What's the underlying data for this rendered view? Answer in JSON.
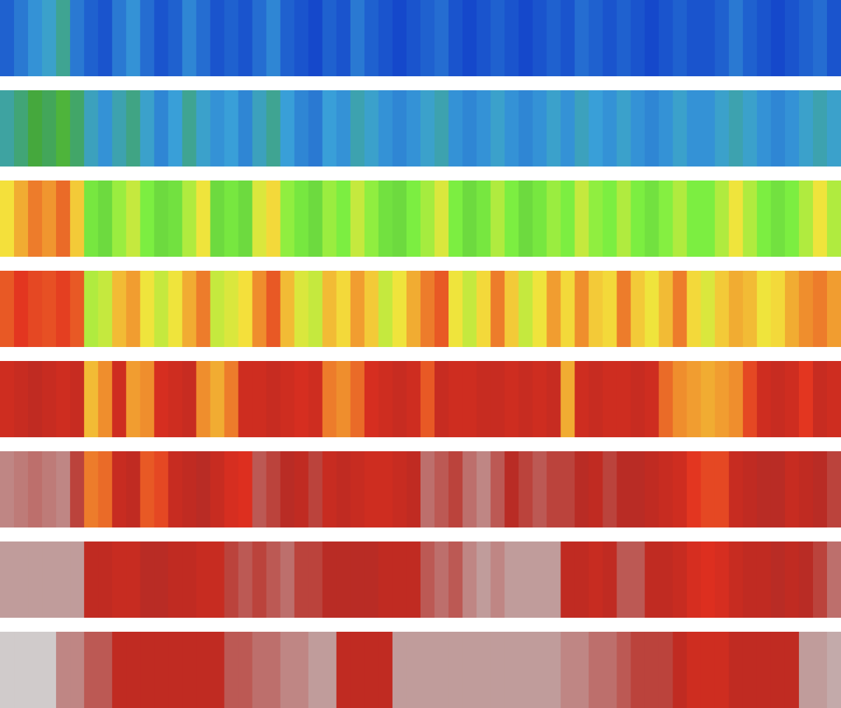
{
  "chart_data": {
    "type": "heatmap",
    "title": "",
    "xlabel": "",
    "ylabel": "",
    "grid": false,
    "legend": "none",
    "colormap": [
      "#0016c4",
      "#3aa0d8",
      "#45a83a",
      "#7ef041",
      "#f4e43c",
      "#f0922e",
      "#e2301f",
      "#b92a22",
      "#c1a6a6",
      "#d3d3d3"
    ],
    "rows": [
      {
        "name": "",
        "values": [
          0.06,
          0.08,
          0.1,
          0.12,
          0.16,
          0.08,
          0.06,
          0.05,
          0.08,
          0.1,
          0.07,
          0.05,
          0.06,
          0.09,
          0.07,
          0.05,
          0.06,
          0.05,
          0.07,
          0.09,
          0.06,
          0.05,
          0.04,
          0.06,
          0.05,
          0.08,
          0.06,
          0.05,
          0.04,
          0.05,
          0.06,
          0.07,
          0.05,
          0.04,
          0.05,
          0.06,
          0.05,
          0.04,
          0.05,
          0.06,
          0.05,
          0.07,
          0.06,
          0.05,
          0.06,
          0.05,
          0.04,
          0.05,
          0.06,
          0.05,
          0.05,
          0.06,
          0.08,
          0.06,
          0.05,
          0.04,
          0.05,
          0.06,
          0.07,
          0.05
        ]
      },
      {
        "name": "",
        "values": [
          0.15,
          0.18,
          0.22,
          0.2,
          0.24,
          0.19,
          0.13,
          0.1,
          0.14,
          0.17,
          0.12,
          0.09,
          0.11,
          0.16,
          0.12,
          0.1,
          0.11,
          0.09,
          0.13,
          0.16,
          0.11,
          0.09,
          0.08,
          0.11,
          0.1,
          0.14,
          0.12,
          0.1,
          0.09,
          0.1,
          0.12,
          0.14,
          0.1,
          0.09,
          0.1,
          0.12,
          0.1,
          0.09,
          0.1,
          0.12,
          0.1,
          0.13,
          0.11,
          0.1,
          0.12,
          0.1,
          0.09,
          0.1,
          0.12,
          0.1,
          0.1,
          0.12,
          0.14,
          0.12,
          0.1,
          0.09,
          0.1,
          0.12,
          0.14,
          0.12
        ]
      },
      {
        "name": "",
        "values": [
          0.45,
          0.52,
          0.58,
          0.55,
          0.6,
          0.48,
          0.32,
          0.3,
          0.36,
          0.4,
          0.33,
          0.3,
          0.31,
          0.38,
          0.44,
          0.3,
          0.32,
          0.3,
          0.42,
          0.46,
          0.35,
          0.32,
          0.3,
          0.36,
          0.33,
          0.4,
          0.35,
          0.31,
          0.3,
          0.33,
          0.37,
          0.42,
          0.33,
          0.3,
          0.32,
          0.38,
          0.33,
          0.3,
          0.32,
          0.36,
          0.33,
          0.4,
          0.35,
          0.33,
          0.38,
          0.33,
          0.31,
          0.34,
          0.38,
          0.33,
          0.33,
          0.38,
          0.44,
          0.38,
          0.33,
          0.31,
          0.33,
          0.38,
          0.44,
          0.38
        ]
      },
      {
        "name": "",
        "values": [
          0.62,
          0.66,
          0.64,
          0.63,
          0.65,
          0.62,
          0.38,
          0.4,
          0.5,
          0.54,
          0.44,
          0.4,
          0.44,
          0.52,
          0.58,
          0.4,
          0.42,
          0.45,
          0.56,
          0.62,
          0.5,
          0.42,
          0.4,
          0.5,
          0.46,
          0.54,
          0.48,
          0.4,
          0.44,
          0.52,
          0.58,
          0.62,
          0.44,
          0.4,
          0.46,
          0.58,
          0.48,
          0.4,
          0.44,
          0.54,
          0.46,
          0.56,
          0.48,
          0.46,
          0.58,
          0.48,
          0.44,
          0.5,
          0.58,
          0.46,
          0.42,
          0.48,
          0.52,
          0.5,
          0.44,
          0.46,
          0.52,
          0.56,
          0.58,
          0.54
        ]
      },
      {
        "name": "",
        "values": [
          0.72,
          0.74,
          0.76,
          0.74,
          0.72,
          0.74,
          0.5,
          0.56,
          0.72,
          0.54,
          0.56,
          0.7,
          0.72,
          0.74,
          0.56,
          0.52,
          0.58,
          0.72,
          0.72,
          0.74,
          0.72,
          0.7,
          0.72,
          0.58,
          0.56,
          0.6,
          0.7,
          0.72,
          0.74,
          0.72,
          0.62,
          0.74,
          0.72,
          0.72,
          0.74,
          0.74,
          0.72,
          0.74,
          0.72,
          0.74,
          0.52,
          0.72,
          0.74,
          0.72,
          0.72,
          0.74,
          0.72,
          0.6,
          0.56,
          0.54,
          0.52,
          0.54,
          0.56,
          0.64,
          0.72,
          0.74,
          0.72,
          0.66,
          0.74,
          0.72
        ]
      },
      {
        "name": "",
        "values": [
          0.86,
          0.85,
          0.84,
          0.85,
          0.86,
          0.8,
          0.58,
          0.6,
          0.74,
          0.76,
          0.62,
          0.64,
          0.74,
          0.76,
          0.78,
          0.74,
          0.7,
          0.68,
          0.82,
          0.8,
          0.78,
          0.76,
          0.8,
          0.74,
          0.76,
          0.74,
          0.72,
          0.72,
          0.74,
          0.76,
          0.84,
          0.82,
          0.8,
          0.84,
          0.86,
          0.82,
          0.78,
          0.8,
          0.82,
          0.8,
          0.8,
          0.78,
          0.76,
          0.8,
          0.78,
          0.78,
          0.76,
          0.74,
          0.72,
          0.66,
          0.64,
          0.64,
          0.74,
          0.76,
          0.78,
          0.78,
          0.74,
          0.76,
          0.78,
          0.8
        ]
      },
      {
        "name": "",
        "values": [
          0.88,
          0.88,
          0.88,
          0.88,
          0.88,
          0.88,
          0.76,
          0.76,
          0.74,
          0.74,
          0.78,
          0.78,
          0.76,
          0.76,
          0.74,
          0.74,
          0.8,
          0.82,
          0.8,
          0.82,
          0.84,
          0.8,
          0.8,
          0.78,
          0.78,
          0.78,
          0.78,
          0.76,
          0.76,
          0.76,
          0.82,
          0.84,
          0.82,
          0.86,
          0.88,
          0.86,
          0.88,
          0.88,
          0.88,
          0.88,
          0.76,
          0.76,
          0.74,
          0.76,
          0.82,
          0.82,
          0.76,
          0.76,
          0.74,
          0.7,
          0.68,
          0.7,
          0.74,
          0.76,
          0.76,
          0.78,
          0.76,
          0.78,
          0.8,
          0.84
        ]
      },
      {
        "name": "",
        "values": [
          0.98,
          0.98,
          0.98,
          0.98,
          0.86,
          0.86,
          0.82,
          0.82,
          0.76,
          0.76,
          0.76,
          0.76,
          0.76,
          0.76,
          0.76,
          0.76,
          0.82,
          0.82,
          0.84,
          0.84,
          0.86,
          0.86,
          0.88,
          0.88,
          0.76,
          0.76,
          0.76,
          0.76,
          0.88,
          0.88,
          0.88,
          0.88,
          0.88,
          0.88,
          0.88,
          0.88,
          0.88,
          0.88,
          0.88,
          0.88,
          0.86,
          0.86,
          0.84,
          0.84,
          0.82,
          0.8,
          0.8,
          0.8,
          0.76,
          0.72,
          0.72,
          0.72,
          0.76,
          0.76,
          0.76,
          0.76,
          0.76,
          0.88,
          0.88,
          0.9
        ]
      }
    ]
  }
}
